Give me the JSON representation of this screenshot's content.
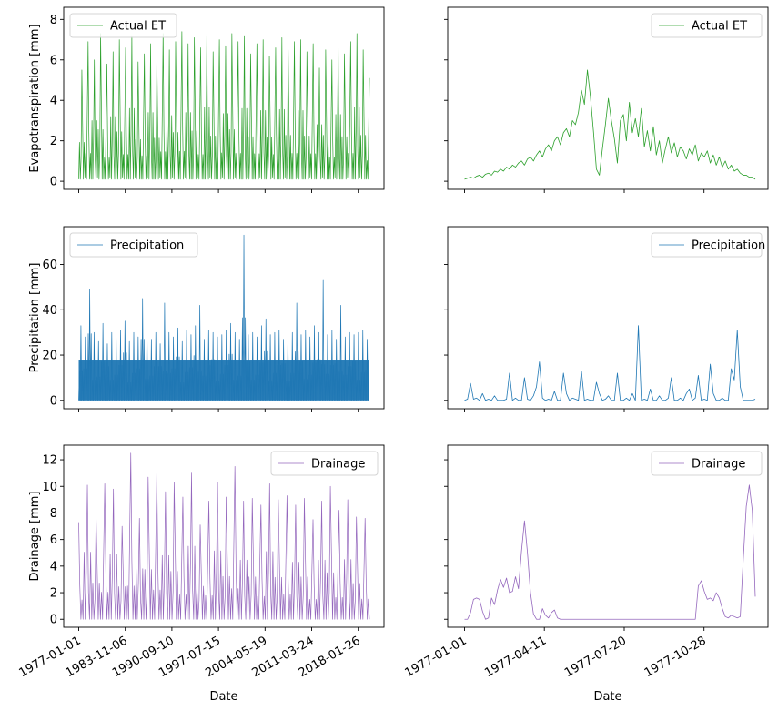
{
  "chart_data": [
    {
      "type": "line",
      "panel": "et-full",
      "series": [
        {
          "name": "Actual ET",
          "color": "#2ca02c",
          "description": "daily values, seasonal cycle each year, summer peaks 5-7.5, winter minima ~0.1",
          "x_range": [
            "1977-01-01",
            "2022-12-31"
          ],
          "values": [
            0.1,
            5.5,
            0.2,
            6.9,
            0.1,
            6.0,
            0.2,
            7.3,
            0.1,
            5.8,
            0.2,
            6.4,
            0.1,
            7.0,
            0.2,
            6.6,
            0.1,
            7.2,
            0.2,
            5.9,
            0.1,
            6.3,
            0.2,
            6.8,
            0.1,
            6.1,
            0.2,
            7.3,
            0.1,
            6.5,
            0.2,
            6.9,
            0.1,
            7.4,
            0.2,
            6.8,
            0.1,
            7.1,
            0.2,
            6.6,
            0.1,
            7.3,
            0.2,
            6.4,
            0.1,
            7.0,
            0.2,
            6.7,
            0.1,
            7.3,
            0.2,
            6.9,
            0.1,
            7.2,
            0.2,
            6.3,
            0.1,
            6.8,
            0.2,
            7.0,
            0.1,
            6.2,
            0.2,
            6.6,
            0.1,
            7.1,
            0.2,
            6.5,
            0.1,
            6.9,
            0.2,
            7.0,
            0.1,
            6.4,
            0.2,
            6.8,
            0.1,
            5.6,
            0.2,
            6.5,
            0.1,
            6.0,
            0.2,
            6.6,
            0.1,
            6.3,
            0.2,
            6.9,
            0.1,
            7.3,
            0.2,
            6.5,
            0.1,
            5.1
          ]
        }
      ],
      "xlabel": "",
      "ylabel": "Evapotranspiration [mm]",
      "ylim": [
        -0.4,
        8.6
      ],
      "yticks": [
        0,
        2,
        4,
        6,
        8
      ],
      "legend": "upper left",
      "grid": false
    },
    {
      "type": "line",
      "panel": "et-1977",
      "series": [
        {
          "name": "Actual ET",
          "color": "#2ca02c",
          "x_start": "1977-01-01",
          "x_end": "1977-12-31",
          "values": [
            0.1,
            0.15,
            0.2,
            0.15,
            0.25,
            0.3,
            0.2,
            0.35,
            0.4,
            0.3,
            0.5,
            0.45,
            0.6,
            0.5,
            0.7,
            0.6,
            0.8,
            0.7,
            0.9,
            1.0,
            0.8,
            1.1,
            1.2,
            1.0,
            1.3,
            1.5,
            1.2,
            1.6,
            1.8,
            1.5,
            2.0,
            2.2,
            1.8,
            2.4,
            2.6,
            2.2,
            3.0,
            2.8,
            3.4,
            4.5,
            3.8,
            5.5,
            4.2,
            2.5,
            0.6,
            0.3,
            1.6,
            2.8,
            4.1,
            3.0,
            2.1,
            0.9,
            3.0,
            3.3,
            2.0,
            3.9,
            2.4,
            3.1,
            2.2,
            3.6,
            1.7,
            2.5,
            1.5,
            2.7,
            1.3,
            2.0,
            0.9,
            1.6,
            2.2,
            1.4,
            1.9,
            1.2,
            1.7,
            1.5,
            1.1,
            1.6,
            1.3,
            1.8,
            1.0,
            1.4,
            1.2,
            1.5,
            0.9,
            1.3,
            0.8,
            1.2,
            0.7,
            1.0,
            0.6,
            0.8,
            0.5,
            0.6,
            0.4,
            0.3,
            0.3,
            0.2,
            0.2,
            0.1
          ]
        }
      ],
      "xlabel": "",
      "ylabel": "",
      "ylim": [
        -0.4,
        8.6
      ],
      "yticks": [
        0,
        2,
        4,
        6,
        8
      ],
      "legend": "upper right",
      "grid": false
    },
    {
      "type": "line",
      "panel": "precip-full",
      "series": [
        {
          "name": "Precipitation",
          "color": "#1f77b4",
          "x_range": [
            "1977-01-01",
            "2022-12-31"
          ],
          "values": [
            33,
            28,
            49,
            30,
            26,
            34,
            25,
            30,
            28,
            31,
            35,
            26,
            30,
            28,
            45,
            31,
            27,
            30,
            25,
            43,
            30,
            28,
            32,
            26,
            31,
            29,
            33,
            42,
            27,
            31,
            30,
            28,
            29,
            31,
            34,
            30,
            27,
            73,
            29,
            30,
            28,
            33,
            36,
            29,
            30,
            31,
            27,
            28,
            30,
            43,
            29,
            31,
            28,
            33,
            30,
            53,
            29,
            31,
            27,
            42,
            28,
            30,
            29,
            30,
            31,
            27
          ]
        }
      ],
      "xlabel": "",
      "ylabel": "Precipitation [mm]",
      "ylim": [
        -3.7,
        76.7
      ],
      "yticks": [
        0,
        20,
        40,
        60
      ],
      "legend": "upper left",
      "grid": false
    },
    {
      "type": "line",
      "panel": "precip-1977",
      "series": [
        {
          "name": "Precipitation",
          "color": "#1f77b4",
          "x_start": "1977-01-01",
          "x_end": "1977-12-31",
          "values": [
            0,
            0.5,
            7.5,
            0.5,
            1,
            0,
            3,
            0,
            0.5,
            0,
            2,
            0,
            0,
            0,
            0.5,
            12,
            0,
            1,
            0,
            0,
            10,
            0.5,
            0,
            2,
            6,
            17,
            1,
            0,
            0.5,
            0,
            4,
            0,
            0,
            12,
            3,
            0,
            1,
            0.5,
            0,
            13,
            0,
            0.5,
            0,
            0,
            8,
            3,
            0,
            0.5,
            2,
            0,
            0,
            12,
            0,
            0,
            1,
            0,
            3,
            0,
            33,
            0,
            0.5,
            0,
            5,
            0,
            0,
            2,
            0,
            0,
            1,
            10,
            0,
            0,
            1,
            0,
            3,
            5,
            0,
            1,
            11,
            0,
            0.5,
            0,
            16,
            3,
            0,
            0,
            1,
            0,
            0,
            14,
            9,
            31,
            6,
            0,
            0,
            0,
            0,
            0.5
          ]
        }
      ],
      "xlabel": "",
      "ylabel": "",
      "ylim": [
        -3.7,
        76.7
      ],
      "yticks": [
        0,
        20,
        40,
        60
      ],
      "legend": "upper right",
      "grid": false
    },
    {
      "type": "line",
      "panel": "drain-full",
      "series": [
        {
          "name": "Drainage",
          "color": "#9467bd",
          "x_range": [
            "1977-01-01",
            "2022-12-31"
          ],
          "values": [
            7.3,
            0,
            10.1,
            0,
            7.8,
            0,
            10.2,
            0,
            9.8,
            0,
            7.0,
            0,
            12.5,
            0,
            7.6,
            0,
            10.7,
            0,
            11.0,
            0,
            9.6,
            0,
            10.3,
            0,
            9.2,
            0,
            11.0,
            0,
            7.1,
            0,
            8.9,
            0,
            10.3,
            0,
            9.2,
            0,
            11.5,
            0,
            8.9,
            0,
            9.1,
            0,
            8.6,
            0,
            10.2,
            0,
            9.0,
            0,
            9.3,
            0,
            8.6,
            0,
            9.1,
            0,
            7.5,
            0,
            8.9,
            0,
            10.0,
            0,
            8.2,
            0,
            9.0,
            0,
            7.7,
            0,
            7.6,
            0
          ]
        }
      ],
      "xlabel": "Date",
      "ylabel": "Drainage [mm]",
      "xticks": [
        "1977-01-01",
        "1983-11-06",
        "1990-09-10",
        "1997-07-15",
        "2004-05-19",
        "2011-03-24",
        "2018-01-26"
      ],
      "ylim": [
        -0.6,
        13.1
      ],
      "yticks": [
        0,
        2,
        4,
        6,
        8,
        10,
        12
      ],
      "legend": "upper right",
      "grid": false
    },
    {
      "type": "line",
      "panel": "drain-1977",
      "series": [
        {
          "name": "Drainage",
          "color": "#9467bd",
          "x_start": "1977-01-01",
          "x_end": "1977-12-31",
          "values": [
            0,
            0,
            0.5,
            1.5,
            1.6,
            1.5,
            0.6,
            0,
            0.1,
            1.6,
            1.1,
            2.2,
            3.0,
            2.4,
            3.1,
            2.0,
            2.1,
            3.2,
            2.3,
            5.1,
            7.4,
            5.0,
            2.0,
            0.4,
            0,
            0,
            0.8,
            0.3,
            0.1,
            0.5,
            0.7,
            0.1,
            0,
            0,
            0,
            0,
            0,
            0,
            0,
            0,
            0,
            0,
            0,
            0,
            0,
            0,
            0,
            0,
            0,
            0,
            0,
            0,
            0,
            0,
            0,
            0,
            0,
            0,
            0,
            0,
            0,
            0,
            0,
            0,
            0,
            0,
            0,
            0,
            0,
            0,
            0,
            0,
            0,
            0,
            0,
            0,
            0,
            0,
            2.5,
            2.9,
            2.1,
            1.5,
            1.6,
            1.4,
            2.0,
            1.6,
            0.8,
            0.2,
            0.1,
            0.3,
            0.2,
            0.1,
            0.2,
            4.5,
            8.5,
            10.1,
            8.2,
            1.7
          ]
        }
      ],
      "xlabel": "Date",
      "ylabel": "",
      "xticks": [
        "1977-01-01",
        "1977-04-11",
        "1977-07-20",
        "1977-10-28"
      ],
      "ylim": [
        -0.6,
        13.1
      ],
      "yticks": [
        0,
        2,
        4,
        6,
        8,
        10,
        12
      ],
      "legend": "upper right",
      "grid": false
    }
  ]
}
